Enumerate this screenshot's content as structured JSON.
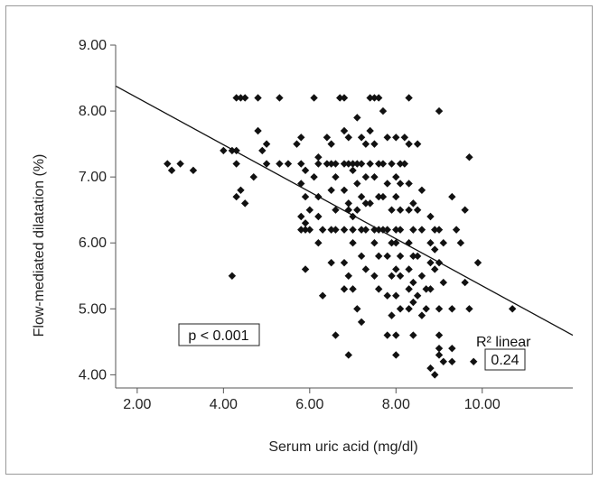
{
  "chart_data": {
    "type": "scatter",
    "title": "",
    "xlabel": "Serum uric acid (mg/dl)",
    "ylabel": "Flow-mediated dilatation (%)",
    "xlim": [
      1.5,
      12.1
    ],
    "ylim": [
      3.8,
      9.0
    ],
    "x_ticks": [
      "2.00",
      "4.00",
      "6.00",
      "8.00",
      "10.00"
    ],
    "y_ticks": [
      "4.00",
      "5.00",
      "6.00",
      "7.00",
      "8.00",
      "9.00"
    ],
    "fit_line": {
      "x": [
        1.5,
        12.1
      ],
      "y": [
        8.38,
        4.6
      ]
    },
    "annotations": {
      "p_value": "p < 0.001",
      "r2_label": "R² linear",
      "r2_value": "0.24"
    },
    "marker_color": "#111111",
    "points": [
      [
        2.7,
        7.2
      ],
      [
        2.8,
        7.1
      ],
      [
        3.0,
        7.2
      ],
      [
        3.3,
        7.1
      ],
      [
        4.0,
        7.4
      ],
      [
        4.2,
        7.4
      ],
      [
        4.3,
        7.4
      ],
      [
        4.3,
        7.2
      ],
      [
        4.3,
        6.7
      ],
      [
        4.4,
        6.8
      ],
      [
        4.5,
        6.6
      ],
      [
        4.2,
        5.5
      ],
      [
        4.3,
        8.2
      ],
      [
        4.4,
        8.2
      ],
      [
        4.5,
        8.2
      ],
      [
        4.8,
        8.2
      ],
      [
        4.8,
        7.7
      ],
      [
        4.9,
        7.4
      ],
      [
        5.0,
        7.5
      ],
      [
        5.0,
        7.2
      ],
      [
        4.7,
        7.0
      ],
      [
        5.3,
        8.2
      ],
      [
        5.3,
        7.2
      ],
      [
        5.5,
        7.2
      ],
      [
        5.7,
        7.5
      ],
      [
        5.8,
        7.6
      ],
      [
        5.8,
        7.2
      ],
      [
        5.9,
        7.1
      ],
      [
        5.8,
        6.9
      ],
      [
        5.9,
        6.7
      ],
      [
        6.0,
        6.5
      ],
      [
        5.8,
        6.4
      ],
      [
        5.9,
        6.3
      ],
      [
        5.8,
        6.2
      ],
      [
        5.9,
        6.2
      ],
      [
        6.0,
        6.2
      ],
      [
        5.9,
        5.6
      ],
      [
        6.1,
        8.2
      ],
      [
        6.2,
        7.3
      ],
      [
        6.2,
        7.2
      ],
      [
        6.1,
        7.0
      ],
      [
        6.2,
        6.7
      ],
      [
        6.2,
        6.4
      ],
      [
        6.3,
        6.2
      ],
      [
        6.2,
        6.0
      ],
      [
        6.3,
        5.2
      ],
      [
        6.4,
        7.6
      ],
      [
        6.5,
        7.5
      ],
      [
        6.4,
        7.2
      ],
      [
        6.5,
        7.2
      ],
      [
        6.6,
        7.2
      ],
      [
        6.6,
        7.0
      ],
      [
        6.5,
        6.8
      ],
      [
        6.6,
        6.5
      ],
      [
        6.6,
        6.2
      ],
      [
        6.5,
        6.2
      ],
      [
        6.5,
        5.7
      ],
      [
        6.6,
        4.6
      ],
      [
        6.7,
        8.2
      ],
      [
        6.8,
        8.2
      ],
      [
        6.8,
        7.7
      ],
      [
        6.9,
        7.6
      ],
      [
        6.9,
        7.2
      ],
      [
        6.8,
        7.2
      ],
      [
        7.0,
        7.2
      ],
      [
        7.0,
        7.1
      ],
      [
        6.8,
        6.8
      ],
      [
        6.9,
        6.6
      ],
      [
        6.9,
        6.5
      ],
      [
        7.0,
        6.4
      ],
      [
        6.8,
        6.2
      ],
      [
        7.0,
        6.2
      ],
      [
        7.0,
        6.0
      ],
      [
        6.8,
        5.7
      ],
      [
        6.9,
        5.5
      ],
      [
        6.8,
        5.3
      ],
      [
        7.0,
        5.3
      ],
      [
        6.9,
        4.3
      ],
      [
        7.1,
        7.9
      ],
      [
        7.2,
        7.6
      ],
      [
        7.3,
        7.5
      ],
      [
        7.1,
        7.2
      ],
      [
        7.2,
        7.2
      ],
      [
        7.3,
        7.0
      ],
      [
        7.1,
        6.9
      ],
      [
        7.2,
        6.7
      ],
      [
        7.3,
        6.6
      ],
      [
        7.1,
        6.5
      ],
      [
        7.2,
        6.2
      ],
      [
        7.3,
        6.2
      ],
      [
        7.2,
        5.8
      ],
      [
        7.3,
        5.6
      ],
      [
        7.1,
        5.0
      ],
      [
        7.2,
        4.8
      ],
      [
        7.4,
        8.2
      ],
      [
        7.5,
        8.2
      ],
      [
        7.6,
        8.2
      ],
      [
        7.4,
        7.7
      ],
      [
        7.5,
        7.5
      ],
      [
        7.4,
        7.2
      ],
      [
        7.6,
        7.2
      ],
      [
        7.5,
        7.0
      ],
      [
        7.6,
        6.7
      ],
      [
        7.4,
        6.6
      ],
      [
        7.5,
        6.2
      ],
      [
        7.6,
        6.2
      ],
      [
        7.5,
        6.0
      ],
      [
        7.6,
        5.8
      ],
      [
        7.5,
        5.5
      ],
      [
        7.6,
        5.3
      ],
      [
        7.7,
        8.0
      ],
      [
        7.8,
        7.6
      ],
      [
        7.7,
        7.2
      ],
      [
        7.9,
        7.2
      ],
      [
        7.8,
        6.9
      ],
      [
        7.7,
        6.7
      ],
      [
        7.9,
        6.5
      ],
      [
        7.7,
        6.2
      ],
      [
        7.8,
        6.2
      ],
      [
        7.9,
        6.0
      ],
      [
        7.8,
        5.8
      ],
      [
        7.9,
        5.5
      ],
      [
        7.8,
        5.2
      ],
      [
        7.9,
        4.9
      ],
      [
        7.8,
        4.6
      ],
      [
        8.0,
        7.6
      ],
      [
        8.1,
        7.2
      ],
      [
        8.0,
        7.0
      ],
      [
        8.1,
        6.9
      ],
      [
        8.0,
        6.7
      ],
      [
        8.1,
        6.5
      ],
      [
        8.0,
        6.2
      ],
      [
        8.1,
        6.2
      ],
      [
        8.0,
        6.0
      ],
      [
        8.1,
        5.8
      ],
      [
        8.0,
        5.6
      ],
      [
        8.1,
        5.5
      ],
      [
        8.0,
        5.2
      ],
      [
        8.1,
        5.0
      ],
      [
        8.0,
        4.6
      ],
      [
        8.0,
        4.3
      ],
      [
        8.3,
        8.2
      ],
      [
        8.2,
        7.6
      ],
      [
        8.3,
        7.5
      ],
      [
        8.2,
        7.2
      ],
      [
        8.3,
        6.9
      ],
      [
        8.4,
        6.6
      ],
      [
        8.3,
        6.5
      ],
      [
        8.4,
        6.2
      ],
      [
        8.3,
        6.0
      ],
      [
        8.4,
        5.8
      ],
      [
        8.3,
        5.6
      ],
      [
        8.4,
        5.4
      ],
      [
        8.3,
        5.3
      ],
      [
        8.4,
        5.1
      ],
      [
        8.3,
        5.0
      ],
      [
        8.4,
        4.6
      ],
      [
        8.5,
        7.5
      ],
      [
        8.6,
        6.8
      ],
      [
        8.5,
        6.5
      ],
      [
        8.6,
        6.2
      ],
      [
        8.5,
        5.8
      ],
      [
        8.6,
        5.5
      ],
      [
        8.5,
        5.2
      ],
      [
        8.7,
        5.3
      ],
      [
        8.7,
        5.0
      ],
      [
        8.6,
        4.9
      ],
      [
        8.8,
        6.4
      ],
      [
        8.9,
        6.2
      ],
      [
        8.8,
        6.0
      ],
      [
        8.9,
        5.9
      ],
      [
        8.8,
        5.7
      ],
      [
        8.9,
        5.6
      ],
      [
        8.8,
        5.3
      ],
      [
        8.8,
        4.1
      ],
      [
        8.9,
        4.0
      ],
      [
        9.0,
        8.0
      ],
      [
        9.0,
        6.2
      ],
      [
        9.1,
        6.0
      ],
      [
        9.0,
        5.7
      ],
      [
        9.1,
        5.4
      ],
      [
        9.0,
        5.0
      ],
      [
        9.0,
        4.6
      ],
      [
        9.0,
        4.4
      ],
      [
        9.0,
        4.3
      ],
      [
        9.1,
        4.2
      ],
      [
        9.3,
        6.7
      ],
      [
        9.4,
        6.2
      ],
      [
        9.5,
        6.0
      ],
      [
        9.3,
        5.0
      ],
      [
        9.3,
        4.4
      ],
      [
        9.3,
        4.2
      ],
      [
        9.6,
        6.5
      ],
      [
        9.6,
        5.4
      ],
      [
        9.7,
        5.0
      ],
      [
        9.7,
        7.3
      ],
      [
        9.9,
        5.7
      ],
      [
        9.8,
        4.2
      ],
      [
        10.6,
        4.3
      ],
      [
        10.7,
        5.0
      ]
    ]
  }
}
